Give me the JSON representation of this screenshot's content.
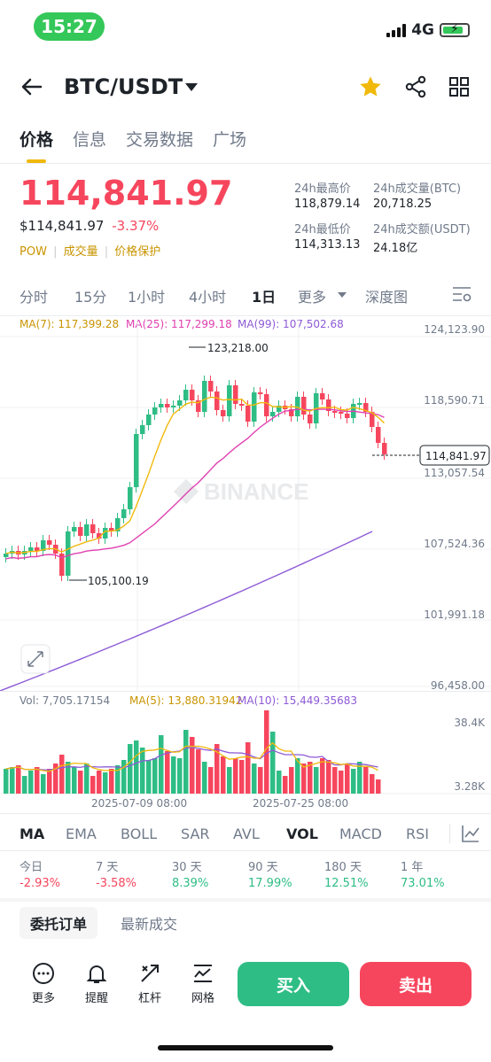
{
  "status": {
    "time": "15:27",
    "network": "4G"
  },
  "header": {
    "pair": "BTC/USDT"
  },
  "tabs": [
    "价格",
    "信息",
    "交易数据",
    "广场"
  ],
  "price": {
    "last": "114,841.97",
    "usd": "$114,841.97",
    "change": "-3.37%"
  },
  "tags": [
    "POW",
    "成交量",
    "价格保护"
  ],
  "stats": {
    "high_label": "24h最高价",
    "high": "118,879.14",
    "vol_btc_label": "24h成交量(BTC)",
    "vol_btc": "20,718.25",
    "low_label": "24h最低价",
    "low": "114,313.13",
    "vol_usdt_label": "24h成交额(USDT)",
    "vol_usdt": "24.18亿"
  },
  "timeframes": {
    "items": [
      "分时",
      "15分",
      "1小时",
      "4小时",
      "1日",
      "更多",
      "深度图"
    ],
    "active": "1日"
  },
  "ma": {
    "ma7": "MA(7): 117,399.28",
    "ma25": "MA(25): 117,299.18",
    "ma99": "MA(99): 107,502.68"
  },
  "axis": {
    "p1": "124,123.90",
    "p2": "118,590.71",
    "p3": "113,057.54",
    "p4": "107,524.36",
    "p5": "101,991.18",
    "p6": "96,458.00"
  },
  "annotations": {
    "high": "123,218.00",
    "low": "105,100.19",
    "current": "114,841.97"
  },
  "watermark": "BINANCE",
  "vol": {
    "vol": "Vol: 7,705.17154",
    "ma5": "MA(5): 13,880.31942",
    "ma10": "MA(10): 15,449.35683",
    "top": "38.4K",
    "bottom": "3.28K"
  },
  "dates": [
    "2025-07-09 08:00",
    "2025-07-25 08:00"
  ],
  "indicators": {
    "items": [
      "MA",
      "EMA",
      "BOLL",
      "SAR",
      "AVL",
      "VOL",
      "MACD",
      "RSI"
    ],
    "active": [
      "MA",
      "VOL"
    ]
  },
  "performance": [
    {
      "label": "今日",
      "value": "-2.93%",
      "dir": "down"
    },
    {
      "label": "7 天",
      "value": "-3.58%",
      "dir": "down"
    },
    {
      "label": "30 天",
      "value": "8.39%",
      "dir": "up"
    },
    {
      "label": "90 天",
      "value": "17.99%",
      "dir": "up"
    },
    {
      "label": "180 天",
      "value": "12.51%",
      "dir": "up"
    },
    {
      "label": "1 年",
      "value": "73.01%",
      "dir": "up"
    }
  ],
  "order_tabs": [
    "委托订单",
    "最新成交"
  ],
  "bottom": {
    "more": "更多",
    "alert": "提醒",
    "leverage": "杠杆",
    "grid": "网格",
    "buy": "买入",
    "sell": "卖出"
  },
  "colors": {
    "up": "#2ebd85",
    "down": "#f6465d",
    "accent": "#f0b90b",
    "ma7": "#f0b90b",
    "ma25": "#e040b0",
    "ma99": "#8e5ad6"
  }
}
